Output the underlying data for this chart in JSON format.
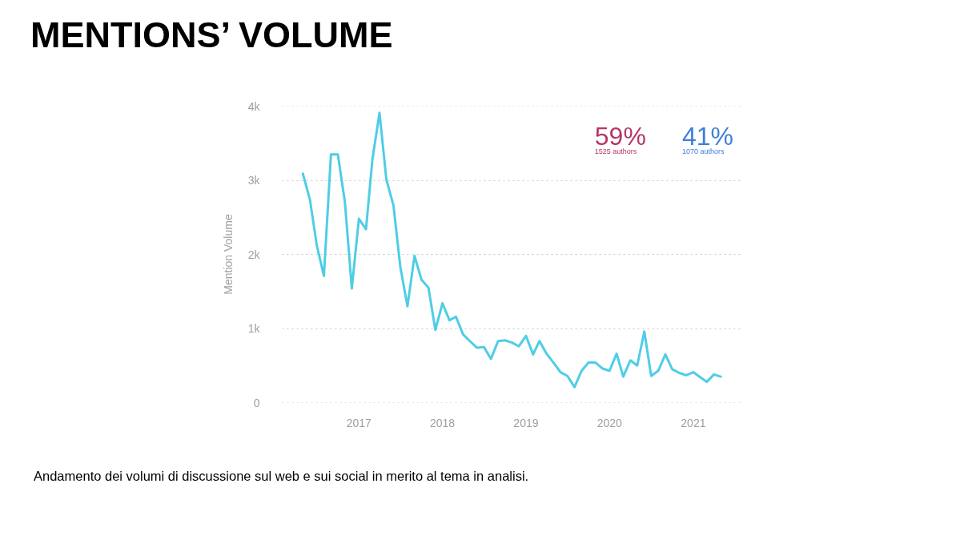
{
  "chart_data": {
    "type": "line",
    "title": "MENTIONS’ VOLUME",
    "ylabel": "Mention Volume",
    "x": [
      "2016-05",
      "2016-06",
      "2016-07",
      "2016-08",
      "2016-09",
      "2016-10",
      "2016-11",
      "2016-12",
      "2017-01",
      "2017-02",
      "2017-03",
      "2017-04",
      "2017-05",
      "2017-06",
      "2017-07",
      "2017-08",
      "2017-09",
      "2017-10",
      "2017-11",
      "2017-12",
      "2018-01",
      "2018-02",
      "2018-03",
      "2018-04",
      "2018-05",
      "2018-06",
      "2018-07",
      "2018-08",
      "2018-09",
      "2018-10",
      "2018-11",
      "2018-12",
      "2019-01",
      "2019-02",
      "2019-03",
      "2019-04",
      "2019-05",
      "2019-06",
      "2019-07",
      "2019-08",
      "2019-09",
      "2019-10",
      "2019-11",
      "2019-12",
      "2020-01",
      "2020-02",
      "2020-03",
      "2020-04",
      "2020-05",
      "2020-06",
      "2020-07",
      "2020-08",
      "2020-09",
      "2020-10",
      "2020-11",
      "2020-12",
      "2021-01",
      "2021-02",
      "2021-03",
      "2021-04",
      "2021-05"
    ],
    "series": [
      {
        "color": "#4fcde6",
        "values": [
          3090,
          2740,
          2120,
          1710,
          3350,
          3350,
          2700,
          1540,
          2480,
          2340,
          3280,
          3910,
          3010,
          2660,
          1830,
          1300,
          1980,
          1660,
          1550,
          980,
          1340,
          1110,
          1160,
          920,
          830,
          740,
          750,
          590,
          830,
          840,
          810,
          760,
          900,
          650,
          830,
          660,
          540,
          410,
          360,
          210,
          430,
          540,
          540,
          460,
          430,
          660,
          350,
          570,
          500,
          960,
          360,
          430,
          650,
          450,
          400,
          370,
          410,
          340,
          280,
          380,
          350
        ]
      }
    ],
    "xlim": [
      "2016-02",
      "2021-08"
    ],
    "xticks": [
      "2017",
      "2018",
      "2019",
      "2020",
      "2021"
    ],
    "ylim": [
      0,
      4000
    ],
    "yticks": [
      0,
      {
        "value": 1000,
        "label": "1k"
      },
      {
        "value": 2000,
        "label": "2k"
      },
      {
        "value": 3000,
        "label": "3k"
      },
      {
        "value": 4000,
        "label": "4k"
      }
    ],
    "grid": "y",
    "line_style": "solid",
    "marker": "none",
    "annotations": [
      "59%",
      "1525 authors",
      "41%",
      "1070 authors",
      "Andamento dei volumi di discussione sul web e sui social in merito al tema in analisi."
    ]
  }
}
